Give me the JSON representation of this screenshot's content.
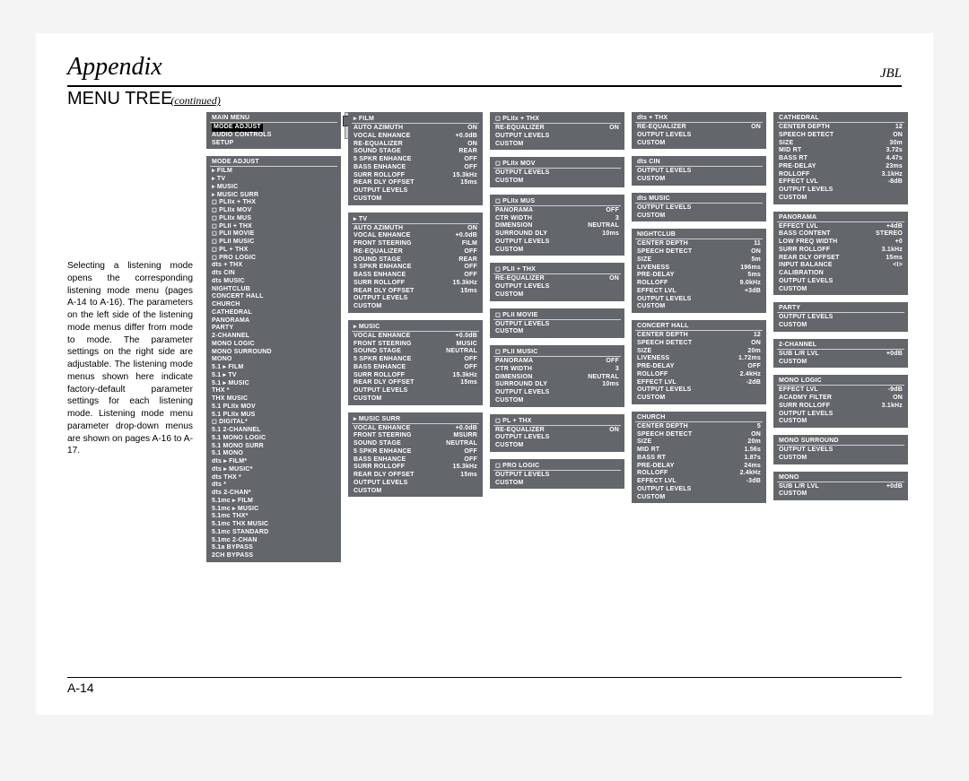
{
  "header": {
    "title": "Appendix",
    "brand": "JBL"
  },
  "subtitle": {
    "main": "MENU TREE",
    "cont": "(continued)"
  },
  "body": "Selecting a listening mode opens the corresponding listening mode menu (pages A-14 to A-16). The parameters on the left side of the listening mode menus differ from mode to mode. The parameter settings on the right side are adjustable. The listening mode menus shown here indicate factory-default parameter settings for each listening mode. Listening mode menu parameter drop-down menus are shown on pages A-16 to A-17.",
  "page_number": "A-14",
  "colors": {
    "panel_bg": "#63666b",
    "panel_fg": "#ffffff",
    "page_bg": "#ffffff"
  },
  "columns": [
    [
      {
        "title": "MAIN MENU",
        "rows": [
          [
            "MODE ADJUST",
            "",
            "highlight"
          ],
          [
            "AUDIO CONTROLS",
            ""
          ],
          [
            "SETUP",
            ""
          ]
        ]
      },
      {
        "title": "MODE ADJUST",
        "rows": [
          [
            "▸ FILM",
            ""
          ],
          [
            "▸ TV",
            ""
          ],
          [
            "▸ MUSIC",
            ""
          ],
          [
            "▸ MUSIC SURR",
            ""
          ],
          [
            "◻ PLIIx + THX",
            ""
          ],
          [
            "◻ PLIIx MOV",
            ""
          ],
          [
            "◻ PLIIx MUS",
            ""
          ],
          [
            "◻ PLII + THX",
            ""
          ],
          [
            "◻ PLII MOVIE",
            ""
          ],
          [
            "◻ PLII MUSIC",
            ""
          ],
          [
            "◻ PL + THX",
            ""
          ],
          [
            "◻ PRO LOGIC",
            ""
          ],
          [
            "dts + THX",
            ""
          ],
          [
            "dts CIN",
            ""
          ],
          [
            "dts MUSIC",
            ""
          ],
          [
            "NIGHTCLUB",
            ""
          ],
          [
            "CONCERT HALL",
            ""
          ],
          [
            "CHURCH",
            ""
          ],
          [
            "CATHEDRAL",
            ""
          ],
          [
            "PANORAMA",
            ""
          ],
          [
            "PARTY",
            ""
          ],
          [
            "2-CHANNEL",
            ""
          ],
          [
            "MONO LOGIC",
            ""
          ],
          [
            "MONO SURROUND",
            ""
          ],
          [
            "MONO",
            ""
          ],
          [
            "5.1 ▸ FILM",
            ""
          ],
          [
            "5.1 ▸ TV",
            ""
          ],
          [
            "5.1 ▸ MUSIC",
            ""
          ],
          [
            "THX *",
            ""
          ],
          [
            "THX MUSIC",
            ""
          ],
          [
            "5.1 PLIIx MOV",
            ""
          ],
          [
            "5.1 PLIIx MUS",
            ""
          ],
          [
            "◻ DIGITAL*",
            ""
          ],
          [
            "5.1 2-CHANNEL",
            ""
          ],
          [
            "5.1 MONO LOGIC",
            ""
          ],
          [
            "5.1 MONO SURR",
            ""
          ],
          [
            "5.1 MONO",
            ""
          ],
          [
            "dts ▸ FILM*",
            ""
          ],
          [
            "dts ▸ MUSIC*",
            ""
          ],
          [
            "dts THX *",
            ""
          ],
          [
            "dts *",
            ""
          ],
          [
            "dts 2-CHAN*",
            ""
          ],
          [
            "5.1mc ▸ FILM",
            ""
          ],
          [
            "5.1mc ▸ MUSIC",
            ""
          ],
          [
            "5.1mc THX*",
            ""
          ],
          [
            "5.1mc THX MUSIC",
            ""
          ],
          [
            "5.1mc STANDARD",
            ""
          ],
          [
            "5.1mc 2-CHAN",
            ""
          ],
          [
            "5.1a BYPASS",
            ""
          ],
          [
            "2CH BYPASS",
            ""
          ]
        ]
      }
    ],
    [
      {
        "title": "▸ FILM",
        "rows": [
          [
            "AUTO AZIMUTH",
            "ON"
          ],
          [
            "VOCAL ENHANCE",
            "+0.0dB"
          ],
          [
            "RE-EQUALIZER",
            "ON"
          ],
          [
            "SOUND STAGE",
            "REAR"
          ],
          [
            "5 SPKR ENHANCE",
            "OFF"
          ],
          [
            "BASS ENHANCE",
            "OFF"
          ],
          [
            "SURR ROLLOFF",
            "15.3kHz"
          ],
          [
            "REAR DLY OFFSET",
            "15ms"
          ],
          [
            "OUTPUT LEVELS",
            ""
          ],
          [
            "CUSTOM",
            ""
          ]
        ]
      },
      {
        "title": "▸ TV",
        "rows": [
          [
            "AUTO AZIMUTH",
            "ON"
          ],
          [
            "VOCAL ENHANCE",
            "+0.0dB"
          ],
          [
            "FRONT STEERING",
            "FILM"
          ],
          [
            "RE-EQUALIZER",
            "OFF"
          ],
          [
            "SOUND STAGE",
            "REAR"
          ],
          [
            "5 SPKR ENHANCE",
            "OFF"
          ],
          [
            "BASS ENHANCE",
            "OFF"
          ],
          [
            "SURR ROLLOFF",
            "15.3kHz"
          ],
          [
            "REAR DLY OFFSET",
            "15ms"
          ],
          [
            "OUTPUT LEVELS",
            ""
          ],
          [
            "CUSTOM",
            ""
          ]
        ]
      },
      {
        "title": "▸ MUSIC",
        "rows": [
          [
            "VOCAL ENHANCE",
            "+0.0dB"
          ],
          [
            "FRONT STEERING",
            "MUSIC"
          ],
          [
            "SOUND STAGE",
            "NEUTRAL"
          ],
          [
            "5 SPKR ENHANCE",
            "OFF"
          ],
          [
            "BASS ENHANCE",
            "OFF"
          ],
          [
            "SURR ROLLOFF",
            "15.3kHz"
          ],
          [
            "REAR DLY OFFSET",
            "15ms"
          ],
          [
            "OUTPUT LEVELS",
            ""
          ],
          [
            "CUSTOM",
            ""
          ]
        ]
      },
      {
        "title": "▸ MUSIC SURR",
        "rows": [
          [
            "VOCAL ENHANCE",
            "+0.0dB"
          ],
          [
            "FRONT STEERING",
            "MSURR"
          ],
          [
            "SOUND STAGE",
            "NEUTRAL"
          ],
          [
            "5 SPKR ENHANCE",
            "OFF"
          ],
          [
            "BASS ENHANCE",
            "OFF"
          ],
          [
            "SURR ROLLOFF",
            "15.3kHz"
          ],
          [
            "REAR DLY OFFSET",
            "15ms"
          ],
          [
            "OUTPUT LEVELS",
            ""
          ],
          [
            "CUSTOM",
            ""
          ]
        ]
      }
    ],
    [
      {
        "title": "◻ PLIIx + THX",
        "rows": [
          [
            "RE-EQUALIZER",
            "ON"
          ],
          [
            "OUTPUT LEVELS",
            ""
          ],
          [
            "CUSTOM",
            ""
          ]
        ]
      },
      {
        "title": "◻ PLIIx MOV",
        "rows": [
          [
            "OUTPUT LEVELS",
            ""
          ],
          [
            "CUSTOM",
            ""
          ]
        ]
      },
      {
        "title": "◻ PLIIx MUS",
        "rows": [
          [
            "PANORAMA",
            "OFF"
          ],
          [
            "CTR WIDTH",
            "3"
          ],
          [
            "DIMENSION",
            "NEUTRAL"
          ],
          [
            "SURROUND DLY",
            "10ms"
          ],
          [
            "OUTPUT LEVELS",
            ""
          ],
          [
            "CUSTOM",
            ""
          ]
        ]
      },
      {
        "title": "◻ PLII + THX",
        "rows": [
          [
            "RE-EQUALIZER",
            "ON"
          ],
          [
            "OUTPUT LEVELS",
            ""
          ],
          [
            "CUSTOM",
            ""
          ]
        ]
      },
      {
        "title": "◻ PLII MOVIE",
        "rows": [
          [
            "OUTPUT LEVELS",
            ""
          ],
          [
            "CUSTOM",
            ""
          ]
        ]
      },
      {
        "title": "◻ PLII MUSIC",
        "rows": [
          [
            "PANORAMA",
            "OFF"
          ],
          [
            "CTR WIDTH",
            "3"
          ],
          [
            "DIMENSION",
            "NEUTRAL"
          ],
          [
            "SURROUND DLY",
            "10ms"
          ],
          [
            "OUTPUT LEVELS",
            ""
          ],
          [
            "CUSTOM",
            ""
          ]
        ]
      },
      {
        "title": "◻ PL + THX",
        "rows": [
          [
            "RE-EQUALIZER",
            "ON"
          ],
          [
            "OUTPUT LEVELS",
            ""
          ],
          [
            "CUSTOM",
            ""
          ]
        ]
      },
      {
        "title": "◻ PRO LOGIC",
        "rows": [
          [
            "OUTPUT LEVELS",
            ""
          ],
          [
            "CUSTOM",
            ""
          ]
        ]
      }
    ],
    [
      {
        "title": "dts + THX",
        "rows": [
          [
            "RE-EQUALIZER",
            "ON"
          ],
          [
            "OUTPUT LEVELS",
            ""
          ],
          [
            "CUSTOM",
            ""
          ]
        ]
      },
      {
        "title": "dts CIN",
        "rows": [
          [
            "OUTPUT LEVELS",
            ""
          ],
          [
            "CUSTOM",
            ""
          ]
        ]
      },
      {
        "title": "dts MUSIC",
        "rows": [
          [
            "OUTPUT LEVELS",
            ""
          ],
          [
            "CUSTOM",
            ""
          ]
        ]
      },
      {
        "title": "NIGHTCLUB",
        "rows": [
          [
            "CENTER DEPTH",
            "11"
          ],
          [
            "SPEECH DETECT",
            "ON"
          ],
          [
            "SIZE",
            "5m"
          ],
          [
            "LIVENESS",
            "196ms"
          ],
          [
            "PRE-DELAY",
            "5ms"
          ],
          [
            "ROLLOFF",
            "9.0kHz"
          ],
          [
            "EFFECT LVL",
            "+3dB"
          ],
          [
            "OUTPUT LEVELS",
            ""
          ],
          [
            "CUSTOM",
            ""
          ]
        ]
      },
      {
        "title": "CONCERT HALL",
        "rows": [
          [
            "CENTER DEPTH",
            "12"
          ],
          [
            "SPEECH DETECT",
            "ON"
          ],
          [
            "SIZE",
            "20m"
          ],
          [
            "LIVENESS",
            "1.72ms"
          ],
          [
            "PRE-DELAY",
            "OFF"
          ],
          [
            "ROLLOFF",
            "2.4kHz"
          ],
          [
            "EFFECT LVL",
            "-2dB"
          ],
          [
            "OUTPUT LEVELS",
            ""
          ],
          [
            "CUSTOM",
            ""
          ]
        ]
      },
      {
        "title": "CHURCH",
        "rows": [
          [
            "CENTER DEPTH",
            "5"
          ],
          [
            "SPEECH DETECT",
            "ON"
          ],
          [
            "SIZE",
            "20m"
          ],
          [
            "MID RT",
            "1.56s"
          ],
          [
            "BASS RT",
            "1.87s"
          ],
          [
            "PRE-DELAY",
            "24ms"
          ],
          [
            "ROLLOFF",
            "2.4kHz"
          ],
          [
            "EFFECT LVL",
            "-3dB"
          ],
          [
            "OUTPUT LEVELS",
            ""
          ],
          [
            "CUSTOM",
            ""
          ]
        ]
      }
    ],
    [
      {
        "title": "CATHEDRAL",
        "rows": [
          [
            "CENTER DEPTH",
            "12"
          ],
          [
            "SPEECH DETECT",
            "ON"
          ],
          [
            "SIZE",
            "30m"
          ],
          [
            "MID RT",
            "3.72s"
          ],
          [
            "BASS RT",
            "4.47s"
          ],
          [
            "PRE-DELAY",
            "23ms"
          ],
          [
            "ROLLOFF",
            "3.1kHz"
          ],
          [
            "EFFECT LVL",
            "-8dB"
          ],
          [
            "OUTPUT LEVELS",
            ""
          ],
          [
            "CUSTOM",
            ""
          ]
        ]
      },
      {
        "title": "PANORAMA",
        "rows": [
          [
            "EFFECT LVL",
            "+4dB"
          ],
          [
            "BASS CONTENT",
            "STEREO"
          ],
          [
            "LOW FREQ WIDTH",
            "+0"
          ],
          [
            "SURR ROLLOFF",
            "3.1kHz"
          ],
          [
            "REAR DLY OFFSET",
            "15ms"
          ],
          [
            "INPUT BALANCE",
            "<I>"
          ],
          [
            "CALIBRATION",
            ""
          ],
          [
            "OUTPUT LEVELS",
            ""
          ],
          [
            "CUSTOM",
            ""
          ]
        ]
      },
      {
        "title": "PARTY",
        "rows": [
          [
            "OUTPUT LEVELS",
            ""
          ],
          [
            "CUSTOM",
            ""
          ]
        ]
      },
      {
        "title": "2-CHANNEL",
        "rows": [
          [
            "SUB L/R LVL",
            "+0dB"
          ],
          [
            "CUSTOM",
            ""
          ]
        ]
      },
      {
        "title": "MONO LOGIC",
        "rows": [
          [
            "EFFECT LVL",
            "-9dB"
          ],
          [
            "ACADMY FILTER",
            "ON"
          ],
          [
            "SURR ROLLOFF",
            "3.1kHz"
          ],
          [
            "OUTPUT LEVELS",
            ""
          ],
          [
            "CUSTOM",
            ""
          ]
        ]
      },
      {
        "title": "MONO SURROUND",
        "rows": [
          [
            "OUTPUT LEVELS",
            ""
          ],
          [
            "CUSTOM",
            ""
          ]
        ]
      },
      {
        "title": "MONO",
        "rows": [
          [
            "SUB L/R LVL",
            "+0dB"
          ],
          [
            "CUSTOM",
            ""
          ]
        ]
      }
    ]
  ]
}
